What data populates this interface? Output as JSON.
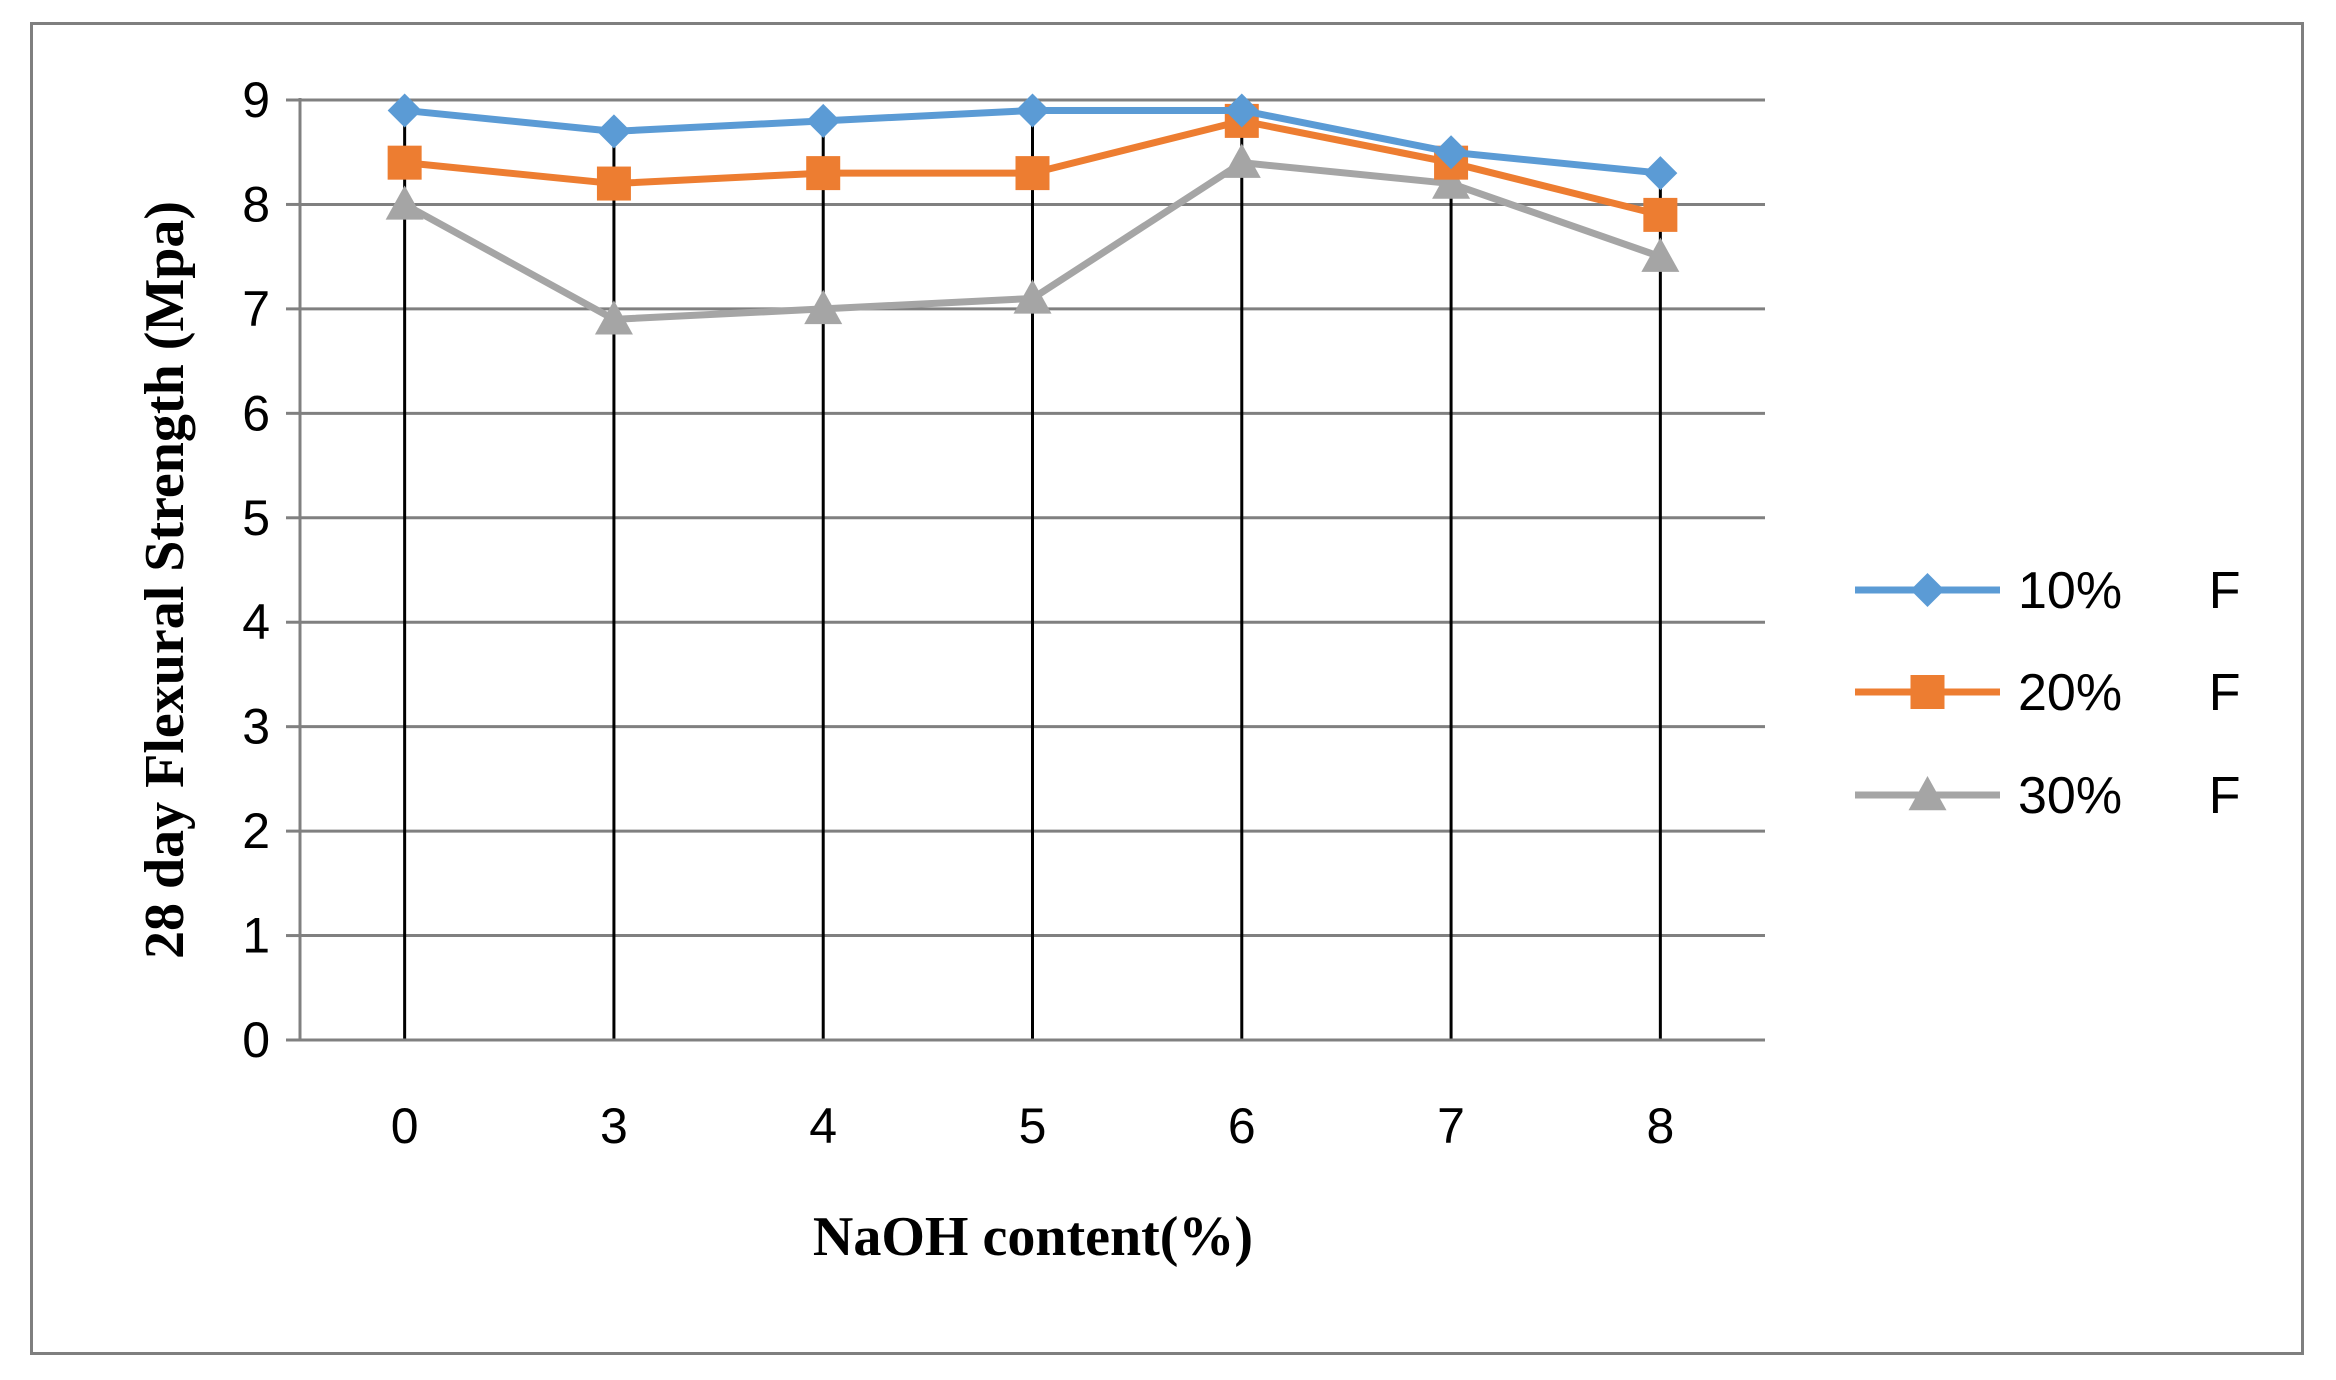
{
  "chart_data": {
    "type": "line",
    "title": "",
    "xlabel": "NaOH content(%)",
    "ylabel": "28 day Flexural  Strength (Mpa)",
    "categories": [
      "0",
      "3",
      "4",
      "5",
      "6",
      "7",
      "8"
    ],
    "ylim": [
      0,
      9
    ],
    "yticks": [
      "0",
      "1",
      "2",
      "3",
      "4",
      "5",
      "6",
      "7",
      "8",
      "9"
    ],
    "grid": true,
    "legend_position": "right",
    "series": [
      {
        "name": "10%      F",
        "values": [
          8.9,
          8.7,
          8.8,
          8.9,
          8.9,
          8.5,
          8.3
        ],
        "color": "#5b9bd5",
        "marker": "diamond"
      },
      {
        "name": "20%      F",
        "values": [
          8.4,
          8.2,
          8.3,
          8.3,
          8.8,
          8.4,
          7.9
        ],
        "color": "#ed7d31",
        "marker": "square"
      },
      {
        "name": "30%      F",
        "values": [
          8.0,
          6.9,
          7.0,
          7.1,
          8.4,
          8.2,
          7.5
        ],
        "color": "#a5a5a5",
        "marker": "triangle"
      }
    ]
  }
}
